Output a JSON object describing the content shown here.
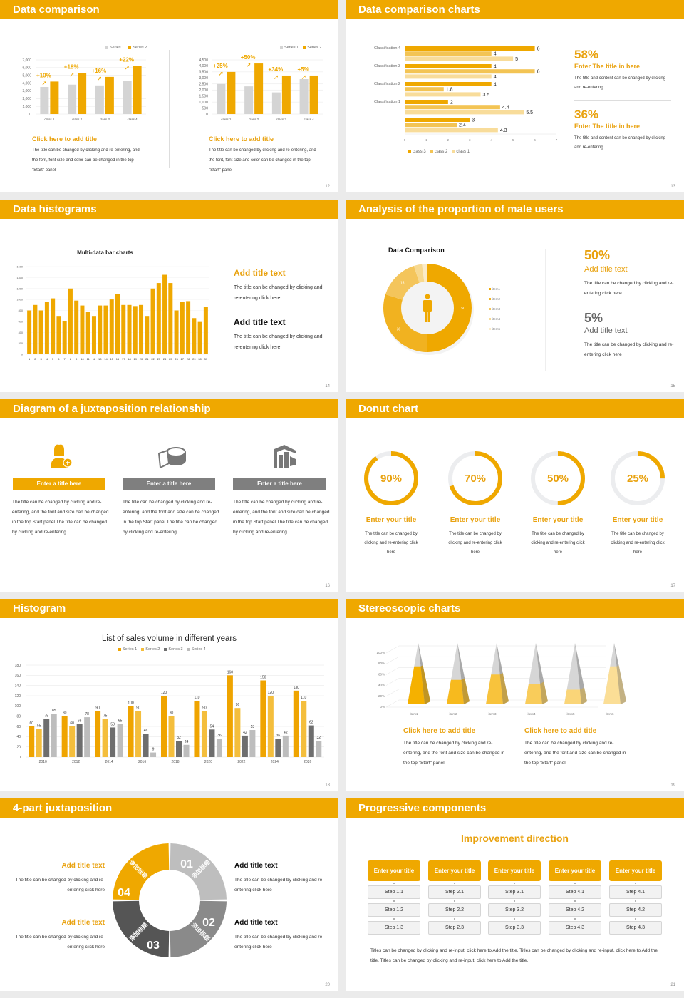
{
  "colors": {
    "accent": "#EFA800",
    "title_orange": "#E9A20F",
    "gray_light": "#D4D4D4",
    "gray_mid": "#8A8A8A",
    "gray_dark": "#555555"
  },
  "slide12": {
    "header": "Data comparison",
    "page": "12",
    "charts": [
      {
        "type": "bar",
        "categories": [
          "class 1",
          "class 2",
          "class 3",
          "class 4"
        ],
        "ylim": [
          0,
          7000
        ],
        "ticks": [
          "0",
          "1,000",
          "2,000",
          "3,000",
          "4,000",
          "5,000",
          "6,000",
          "7,000"
        ],
        "series": [
          {
            "name": "Series 1",
            "values": [
              3500,
              3800,
              3700,
              4300
            ],
            "color": "#D4D4D4"
          },
          {
            "name": "Series 2",
            "values": [
              4200,
              5300,
              4800,
              6200
            ],
            "color": "#EFA800"
          }
        ],
        "annotations": [
          "+10%",
          "+18%",
          "+16%",
          "+22%"
        ]
      },
      {
        "type": "bar",
        "categories": [
          "class 1",
          "class 2",
          "class 3",
          "class 4"
        ],
        "ylim": [
          0,
          4500
        ],
        "ticks": [
          "0",
          "500",
          "1,000",
          "1,500",
          "2,000",
          "2,500",
          "3,000",
          "3,500",
          "4,000",
          "4,500"
        ],
        "series": [
          {
            "name": "Series 1",
            "values": [
              2500,
              2300,
              1800,
              2900
            ],
            "color": "#D4D4D4"
          },
          {
            "name": "Series 2",
            "values": [
              3500,
              4200,
              3200,
              3200
            ],
            "color": "#EFA800"
          }
        ],
        "annotations": [
          "+25%",
          "+50%",
          "+34%",
          "+5%"
        ]
      }
    ],
    "blocks": [
      {
        "title": "Click here to add title",
        "body": "The title can be changed by clicking and re-entering, and the font, font size and color can be changed in the top \"Start\" panel"
      },
      {
        "title": "Click here to add title",
        "body": "The title can be changed by clicking and re-entering, and the font, font size and color can be changed in the top \"Start\" panel"
      }
    ]
  },
  "slide13": {
    "header": "Data comparison charts",
    "page": "13",
    "chart": {
      "type": "hbar",
      "categories": [
        "",
        "Classification 1",
        "Classification 2",
        "Classification 3",
        "Classification 4"
      ],
      "xlim": [
        0,
        7
      ],
      "ticks": [
        "0",
        "1",
        "2",
        "3",
        "4",
        "5",
        "6",
        "7"
      ],
      "series": [
        {
          "name": "class 3",
          "values": [
            3,
            2,
            4,
            4,
            6
          ],
          "color": "#EFA800"
        },
        {
          "name": "class 2",
          "values": [
            2.4,
            4.4,
            1.8,
            6,
            4
          ],
          "color": "#F3C454"
        },
        {
          "name": "class 1",
          "values": [
            4.3,
            5.5,
            3.5,
            4,
            5
          ],
          "color": "#F8DC9A"
        }
      ]
    },
    "stats": [
      {
        "value": "58%",
        "title": "Enter The title in here",
        "body": "The title and content can be changed by clicking and re-entering."
      },
      {
        "value": "36%",
        "title": "Enter The title in here",
        "body": "The title and content can be changed by clicking and re-entering."
      }
    ]
  },
  "slide14": {
    "header": "Data histograms",
    "page": "14",
    "chart": {
      "type": "bar",
      "title": "Multi-data bar charts",
      "ylim": [
        0,
        1600
      ],
      "ticks": [
        "0",
        "200",
        "400",
        "600",
        "800",
        "1000",
        "1200",
        "1400",
        "1600"
      ],
      "categories": [
        "1",
        "2",
        "3",
        "4",
        "5",
        "6",
        "7",
        "8",
        "9",
        "10",
        "11",
        "12",
        "13",
        "14",
        "15",
        "16",
        "17",
        "18",
        "19",
        "20",
        "21",
        "22",
        "23",
        "24",
        "25",
        "26",
        "27",
        "28",
        "29",
        "30",
        "31"
      ],
      "values": [
        800,
        900,
        800,
        950,
        1020,
        700,
        600,
        1200,
        980,
        890,
        780,
        700,
        890,
        890,
        1000,
        1100,
        900,
        900,
        880,
        900,
        700,
        1200,
        1300,
        1450,
        1300,
        800,
        960,
        970,
        660,
        590,
        870
      ]
    },
    "blocks": [
      {
        "title": "Add title text",
        "body": "The title can be changed by clicking and re-entering click here"
      },
      {
        "title": "Add title text",
        "body": "The title can be changed by clicking and re-entering click here"
      }
    ]
  },
  "slide15": {
    "header": "Analysis of the proportion of male users",
    "page": "15",
    "chart": {
      "type": "pie",
      "title": "Data Comparison",
      "labels": [
        "item1",
        "item2",
        "item3",
        "item4",
        "item5"
      ],
      "values": [
        50,
        30,
        15,
        3,
        2
      ],
      "value_labels": [
        "50",
        "30",
        "15",
        "",
        ""
      ],
      "colors": [
        "#EFA800",
        "#F1B220",
        "#F4C55B",
        "#F7D991",
        "#FBEBC8"
      ]
    },
    "stats": [
      {
        "value": "50%",
        "title": "Add title text",
        "body": "The title can be changed by clicking and re-entering click here"
      },
      {
        "value": "5%",
        "title": "Add title text",
        "body": "The title can be changed by clicking and re-entering click here"
      }
    ]
  },
  "slide16": {
    "header": "Diagram of a juxtaposition relationship",
    "page": "16",
    "columns": [
      {
        "icon": "user-add-icon",
        "label": "Enter a title here",
        "color": "#EFA800",
        "body": "The title can be changed by clicking and re-entering, and the font and size can be changed in the top Start panel.The title can be changed by clicking and re-entering."
      },
      {
        "icon": "pie-chart-icon",
        "label": "Enter a title here",
        "color": "#7F7F7F",
        "body": "The title can be changed by clicking and re-entering, and the font and size can be changed in the top Start panel.The title can be changed by clicking and re-entering."
      },
      {
        "icon": "building-chart-icon",
        "label": "Enter a title here",
        "color": "#7F7F7F",
        "body": "The title can be changed by clicking and re-entering, and the font and size can be changed in the top Start panel.The title can be changed by clicking and re-entering."
      }
    ]
  },
  "slide17": {
    "header": "Donut chart",
    "page": "17",
    "rings": [
      {
        "percent": 90,
        "label": "90%",
        "title": "Enter your title",
        "body": "The title can be changed by clicking and re-entering click here"
      },
      {
        "percent": 70,
        "label": "70%",
        "title": "Enter your title",
        "body": "The title can be changed by clicking and re-entering click here"
      },
      {
        "percent": 50,
        "label": "50%",
        "title": "Enter your title",
        "body": "The title can be changed by clicking and re-entering click here"
      },
      {
        "percent": 25,
        "label": "25%",
        "title": "Enter your title",
        "body": "The title can be changed by clicking and re-entering click here"
      }
    ]
  },
  "slide18": {
    "header": "Histogram",
    "page": "18",
    "chart": {
      "type": "bar",
      "title": "List of sales volume in different years",
      "ylim": [
        0,
        180
      ],
      "ticks": [
        "0",
        "20",
        "40",
        "60",
        "80",
        "100",
        "120",
        "140",
        "160",
        "180"
      ],
      "categories": [
        "2010",
        "2012",
        "2014",
        "2016",
        "2018",
        "2020",
        "2022",
        "2024",
        "2026"
      ],
      "series": [
        {
          "name": "Series 1",
          "values": [
            60,
            80,
            90,
            100,
            120,
            110,
            160,
            150,
            130
          ],
          "color": "#EFA400"
        },
        {
          "name": "Series 2",
          "values": [
            55,
            60,
            75,
            90,
            80,
            90,
            96,
            120,
            110
          ],
          "color": "#F4BE3C"
        },
        {
          "name": "Series 3",
          "values": [
            75,
            65,
            58,
            46,
            32,
            54,
            42,
            36,
            62
          ],
          "color": "#6E6E6E"
        },
        {
          "name": "Series 4",
          "values": [
            85,
            78,
            65,
            9,
            24,
            36,
            53,
            42,
            32
          ],
          "color": "#BDBDBD"
        }
      ]
    }
  },
  "slide19": {
    "header": "Stereoscopic charts",
    "page": "19",
    "chart": {
      "type": "bar",
      "style": "3d-pyramid",
      "ylim": [
        0,
        100
      ],
      "ticks": [
        "0%",
        "20%",
        "40%",
        "60%",
        "80%",
        "100%"
      ],
      "categories": [
        "item1",
        "item2",
        "item3",
        "item4",
        "item5",
        "item6"
      ],
      "values": [
        70,
        45,
        55,
        38,
        27,
        70
      ],
      "colors": [
        "#F5B100",
        "#F7BA1E",
        "#F8C33C",
        "#F9CC5A",
        "#FAD578",
        "#FBDE96"
      ]
    },
    "blocks": [
      {
        "title": "Click here to add title",
        "body": "The title can be changed by clicking and re-entering, and the font and size can be changed in the top \"Start\" panel"
      },
      {
        "title": "Click here to add title",
        "body": "The title can be changed by clicking and re-entering, and the font and size can be changed in the top \"Start\" panel"
      }
    ]
  },
  "slide20": {
    "header": "4-part juxtaposition",
    "page": "20",
    "segments": [
      {
        "num": "01",
        "text": "添加标题",
        "color": "#BEBEBE"
      },
      {
        "num": "02",
        "text": "添加标题",
        "color": "#8A8A8A"
      },
      {
        "num": "03",
        "text": "添加标题",
        "color": "#555555"
      },
      {
        "num": "04",
        "text": "添加标题",
        "color": "#EFA800"
      }
    ],
    "blocks": [
      {
        "title": "Add title text",
        "body": "The title can be changed by clicking and re-entering click here"
      },
      {
        "title": "Add title text",
        "body": "The title can be changed by clicking and re-entering click here"
      },
      {
        "title": "Add title text",
        "body": "The title can be changed by clicking and re-entering click here"
      },
      {
        "title": "Add title text",
        "body": "The title can be changed by clicking and re-entering click here"
      }
    ]
  },
  "slide21": {
    "header": "Progressive components",
    "page": "21",
    "title": "Improvement direction",
    "columns": [
      {
        "title": "Enter your title",
        "steps": [
          "Step 1.1",
          "Step 1.2",
          "Step 1.3"
        ]
      },
      {
        "title": "Enter your title",
        "steps": [
          "Step 2.1",
          "Step 2.2",
          "Step 2.3"
        ]
      },
      {
        "title": "Enter your title",
        "steps": [
          "Step 3.1",
          "Step 3.2",
          "Step 3.3"
        ]
      },
      {
        "title": "Enter your title",
        "steps": [
          "Step 4.1",
          "Step 4.2",
          "Step 4.3"
        ]
      },
      {
        "title": "Enter your title",
        "steps": [
          "Step 4.1",
          "Step 4.2",
          "Step 4.3"
        ]
      }
    ],
    "body": "Titles can be changed by clicking and re-input, click here to Add the title. Titles can be changed by clicking and re-input, click here to Add the title. Titles can be changed by clicking and re-input, click here to Add the title."
  }
}
